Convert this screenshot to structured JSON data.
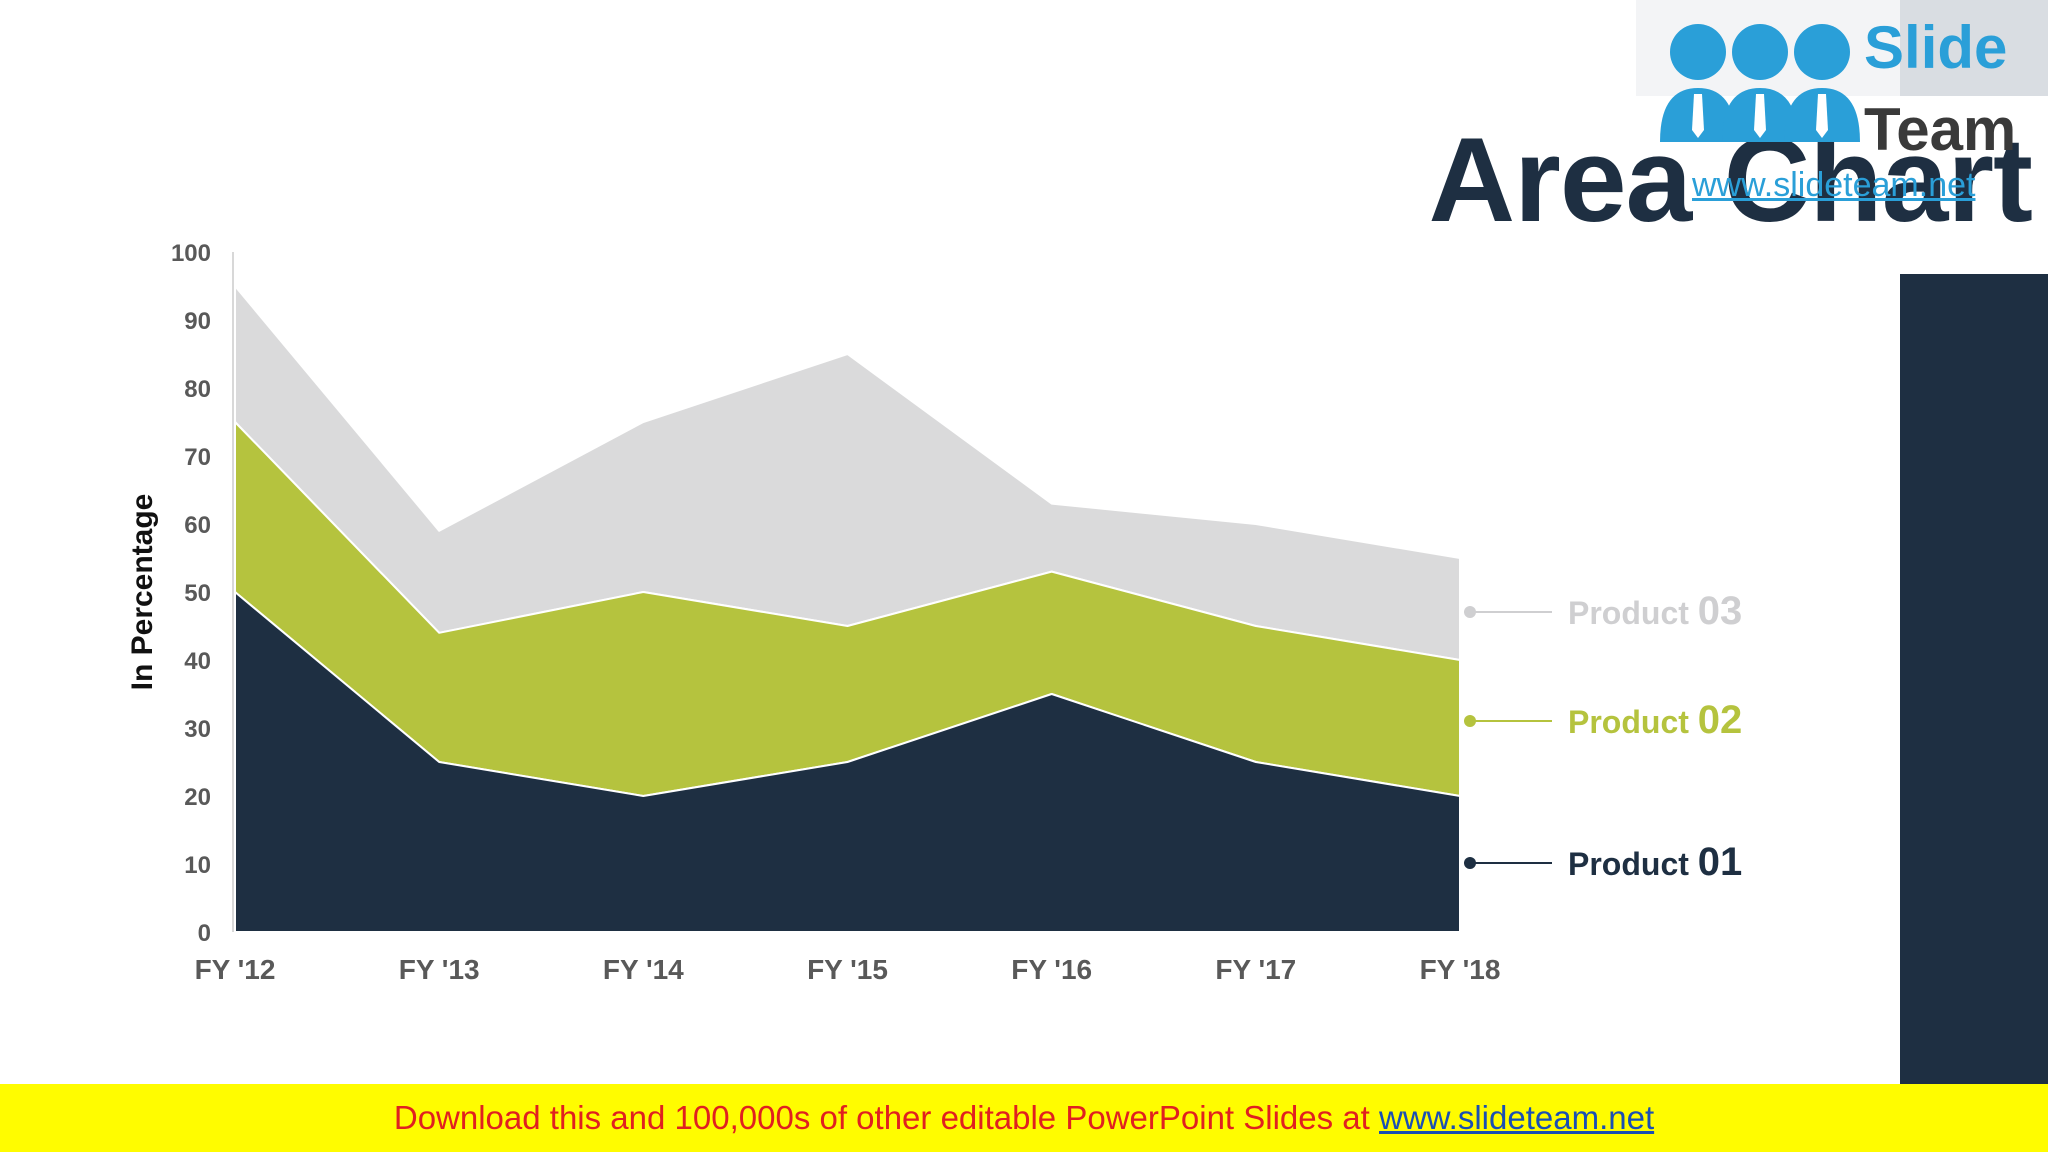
{
  "slide": {
    "title": "Area Chart"
  },
  "logo": {
    "slide_text": "Slide",
    "team_text": "Team",
    "url": "www.slideteam.net"
  },
  "banner": {
    "prefix": "Download this and 100,000s of other editable PowerPoint Slides at ",
    "link": "www.slideteam.net"
  },
  "chart_data": {
    "type": "area",
    "stacked": true,
    "title": "",
    "xlabel": "",
    "ylabel": "In Percentage",
    "ylim": [
      0,
      100
    ],
    "yticks": [
      0,
      10,
      20,
      30,
      40,
      50,
      60,
      70,
      80,
      90,
      100
    ],
    "categories": [
      "FY '12",
      "FY '13",
      "FY '14",
      "FY '15",
      "FY '16",
      "FY '17",
      "FY '18"
    ],
    "series": [
      {
        "name_word": "Product",
        "name_num": "01",
        "color": "#1e2f42",
        "cumulative_top": [
          50,
          25,
          20,
          25,
          35,
          25,
          20
        ]
      },
      {
        "name_word": "Product",
        "name_num": "02",
        "color": "#b5c33e",
        "cumulative_top": [
          75,
          44,
          50,
          45,
          53,
          45,
          40
        ]
      },
      {
        "name_word": "Product",
        "name_num": "03",
        "color": "#dadadb",
        "label_color": "#cfcfd1",
        "cumulative_top": [
          95,
          59,
          75,
          85,
          63,
          60,
          55
        ]
      }
    ],
    "grid": false,
    "legend_position": "right"
  }
}
